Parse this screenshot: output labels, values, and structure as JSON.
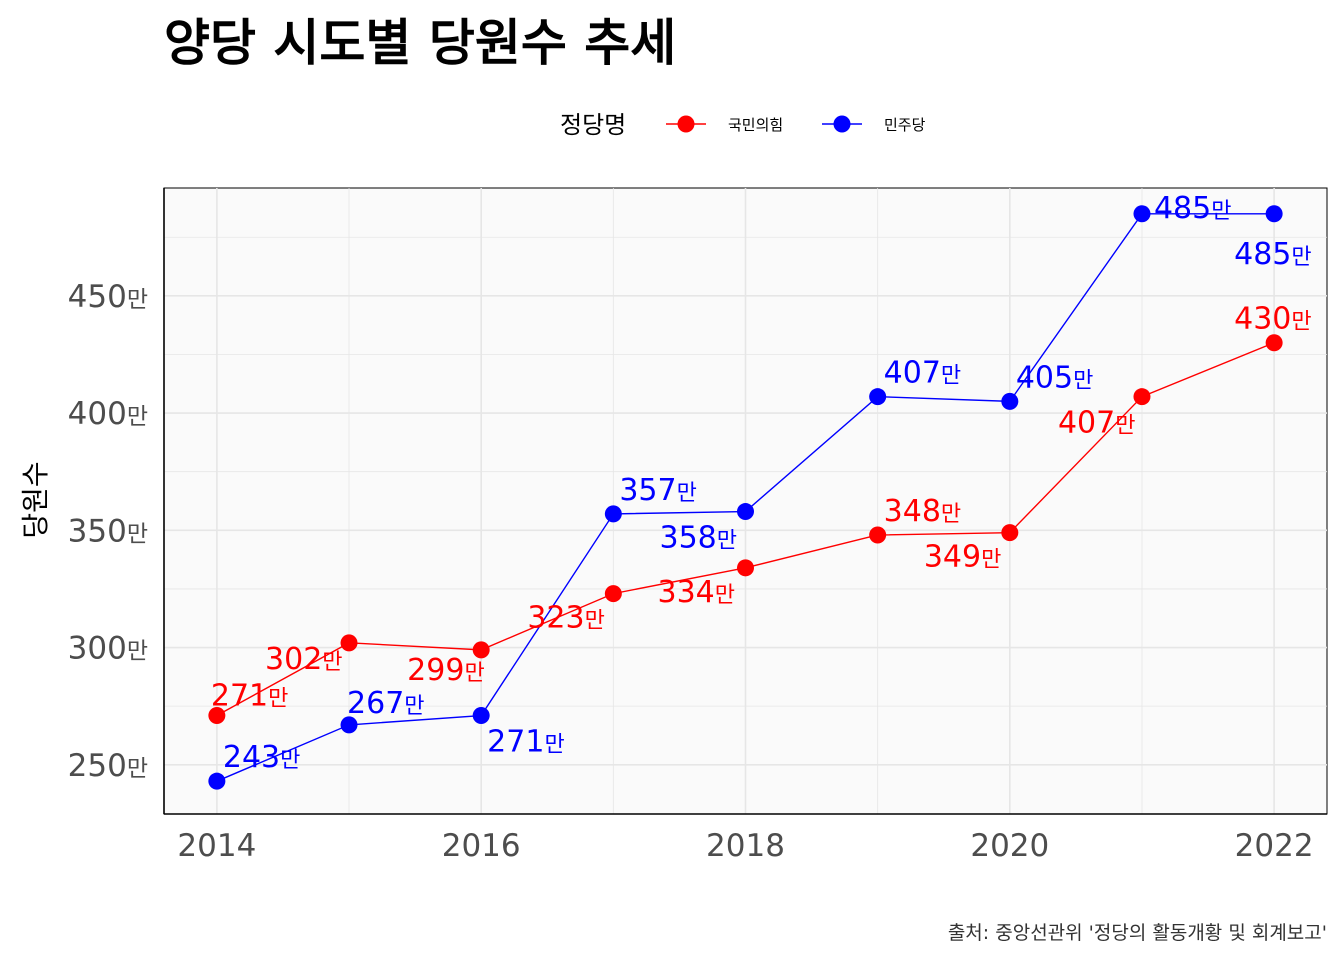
{
  "chart_data": {
    "type": "line",
    "title": "양당 시도별 당원수 추세",
    "ylabel": "당원수",
    "xlabel": "",
    "legend": {
      "title": "정당명",
      "position": "top"
    },
    "caption": "출처: 중앙선관위 '정당의 활동개황 및 회계보고'",
    "x": [
      2014,
      2015,
      2016,
      2017,
      2018,
      2019,
      2020,
      2021,
      2022
    ],
    "xlim": [
      2013.6,
      2022.4
    ],
    "ylim": [
      229,
      496
    ],
    "x_ticks": [
      2014,
      2016,
      2018,
      2020,
      2022
    ],
    "y_ticks": [
      250,
      300,
      350,
      400,
      450
    ],
    "y_unit": "만",
    "grid": true,
    "series": [
      {
        "name": "국민의힘",
        "color": "#ff0000",
        "values": [
          271,
          302,
          299,
          323,
          334,
          348,
          349,
          407,
          430
        ],
        "labels": [
          "271",
          "302",
          "299",
          "323",
          "334",
          "348",
          "349",
          "407",
          "430"
        ]
      },
      {
        "name": "민주당",
        "color": "#0000ff",
        "values": [
          243,
          267,
          271,
          357,
          358,
          407,
          405,
          485,
          485
        ],
        "labels": [
          "243",
          "267",
          "271",
          "357",
          "358",
          "407",
          "405",
          "485",
          "485"
        ]
      }
    ]
  }
}
